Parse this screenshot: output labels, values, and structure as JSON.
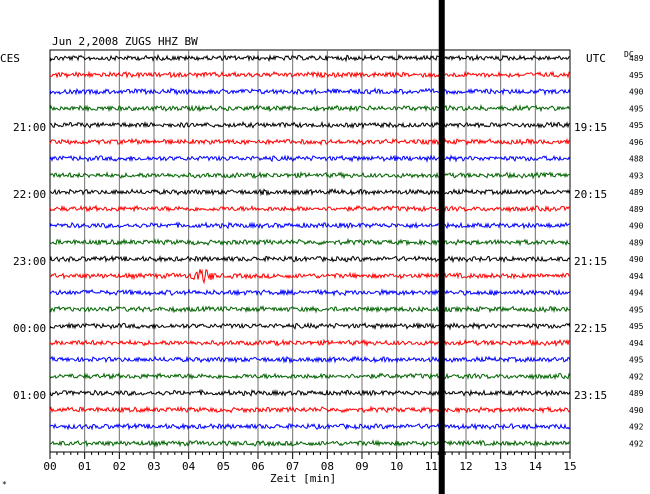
{
  "header": {
    "title": "Jun 2,2008 ZUGS HHZ BW"
  },
  "left_axis": {
    "label": "CES",
    "hour_labels": [
      "21:00",
      "22:00",
      "23:00",
      "00:00",
      "01:00"
    ]
  },
  "right_axis": {
    "label": "UTC",
    "hour_labels": [
      "19:15",
      "20:15",
      "21:15",
      "22:15",
      "23:15"
    ]
  },
  "dc_column": {
    "label": "DC"
  },
  "corner_mark": "*",
  "colors": {
    "cycle": [
      "#000000",
      "#ff0000",
      "#0000ff",
      "#006400"
    ],
    "frame": "#000000",
    "grid": "#707070",
    "marker": "#000000"
  },
  "chart_data": {
    "type": "line",
    "title": "Jun 2,2008 ZUGS HHZ BW",
    "xlabel": "Zeit [min]",
    "xlim": [
      0,
      15
    ],
    "x_ticks": [
      "00",
      "01",
      "02",
      "03",
      "04",
      "05",
      "06",
      "07",
      "08",
      "09",
      "10",
      "11",
      "12",
      "13",
      "14",
      "15"
    ],
    "grid": true,
    "traces": 24,
    "dc_offsets": [
      489,
      495,
      490,
      495,
      495,
      496,
      488,
      493,
      489,
      489,
      490,
      489,
      490,
      494,
      494,
      495,
      495,
      494,
      495,
      492,
      489,
      490,
      492,
      492
    ],
    "event": {
      "trace_index": 13,
      "minute_start": 4.0,
      "minute_end": 4.8
    },
    "marker_minute": 11.3
  }
}
